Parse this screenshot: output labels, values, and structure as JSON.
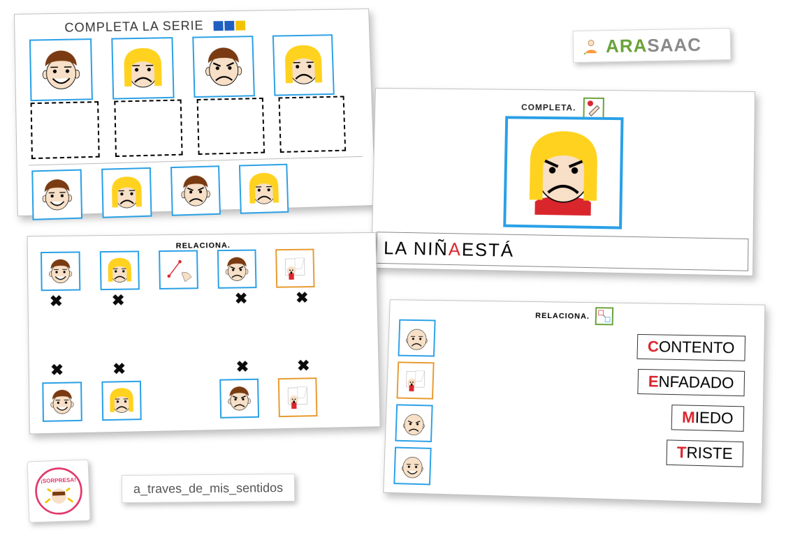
{
  "logo": {
    "ara": "ARA",
    "saac": "SAAC"
  },
  "credit": "a_traves_de_mis_sentidos",
  "sorpresa": "¡SORPRESA!",
  "colors": {
    "skin": "#f7e0c7",
    "hair_brown": "#7a3b12",
    "hair_blonde": "#ffd21f",
    "blue": "#2aa0e6",
    "orange": "#e89a2f",
    "red": "#d9262d",
    "shirt": "#d9262d"
  },
  "card_series": {
    "title": "COMPLETA   LA SERIE",
    "title_fontsize": 18,
    "pattern_colors": [
      "#1f5fbf",
      "#1f5fbf",
      "#f2c200"
    ],
    "row_top": [
      {
        "kind": "boy",
        "mood": "happy"
      },
      {
        "kind": "girl",
        "mood": "sad"
      },
      {
        "kind": "boy",
        "mood": "angry"
      },
      {
        "kind": "girl",
        "mood": "sad"
      }
    ],
    "blanks": 4,
    "row_bottom": [
      {
        "kind": "boy",
        "mood": "happy"
      },
      {
        "kind": "girl",
        "mood": "sad"
      },
      {
        "kind": "boy",
        "mood": "angry"
      },
      {
        "kind": "girl",
        "mood": "sad"
      }
    ]
  },
  "card_completa": {
    "title": "COMPLETA.",
    "title_fontsize": 12,
    "sentence_pre": "LA   NIÑ",
    "sentence_hl": "A",
    "sentence_post": " ESTÁ",
    "subject": {
      "kind": "girl",
      "mood": "angry",
      "shirt": true
    }
  },
  "card_relaciona_x": {
    "title": "RELACIONA.",
    "title_fontsize": 11,
    "top": [
      {
        "kind": "boy",
        "mood": "happy"
      },
      {
        "kind": "girl",
        "mood": "sad"
      },
      {
        "kind": "hand",
        "mood": ""
      },
      {
        "kind": "boy",
        "mood": "angry"
      },
      {
        "kind": "scared",
        "mood": "",
        "border": "orange"
      }
    ],
    "x_top": [
      1,
      1,
      0,
      1,
      1
    ],
    "bottom": [
      {
        "kind": "boy",
        "mood": "happy"
      },
      {
        "kind": "girl",
        "mood": "sad"
      },
      null,
      {
        "kind": "boy",
        "mood": "angry"
      },
      {
        "kind": "scared",
        "mood": "",
        "border": "orange"
      }
    ],
    "x_bottom": [
      1,
      1,
      0,
      1,
      1
    ]
  },
  "card_relaciona_words": {
    "title": "RELACIONA.",
    "title_fontsize": 11,
    "left": [
      {
        "kind": "bald",
        "mood": "sad"
      },
      {
        "kind": "scared",
        "mood": "",
        "border": "orange"
      },
      {
        "kind": "bald",
        "mood": "angry"
      },
      {
        "kind": "bald",
        "mood": "happy"
      }
    ],
    "words": [
      {
        "hl": "C",
        "rest": "ONTENTO",
        "hl_color": "#d9262d"
      },
      {
        "hl": "E",
        "rest": "NFADADO",
        "hl_color": "#d9262d"
      },
      {
        "hl": "M",
        "rest": "IEDO",
        "hl_color": "#d9262d"
      },
      {
        "hl": "T",
        "rest": "RISTE",
        "hl_color": "#d9262d"
      }
    ]
  }
}
